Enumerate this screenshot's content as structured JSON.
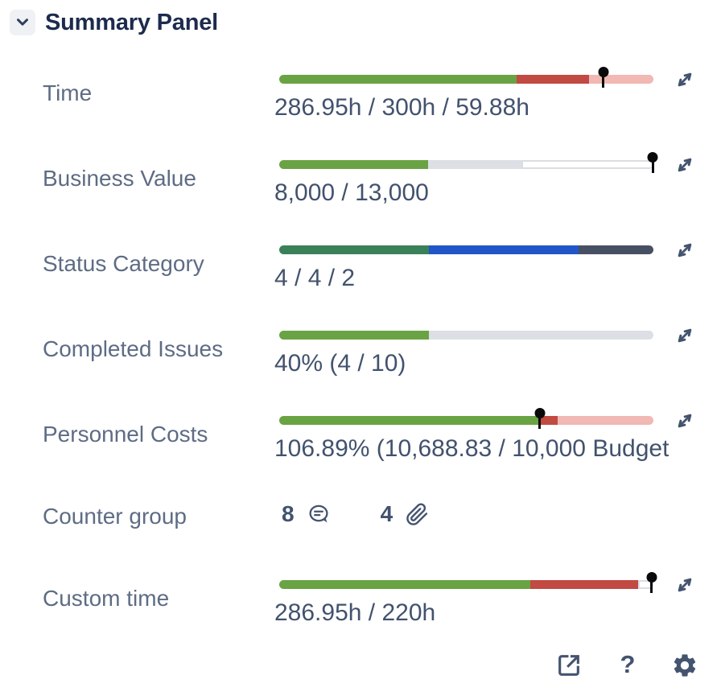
{
  "panel": {
    "title": "Summary Panel"
  },
  "colors": {
    "green": "#6aa343",
    "red": "#c14a42",
    "pink": "#f1b8b4",
    "gray": "#dcdfe4",
    "white": "#ffffff",
    "sea_green": "#3a8159",
    "blue": "#2056c7",
    "dark_slate": "#475063",
    "pin_black": "#0a0a0a",
    "icon_slate": "#44546f",
    "label_text": "#5e6c84",
    "value_text": "#42526e",
    "title_text": "#1c2b4d"
  },
  "rows": [
    {
      "label": "Time",
      "value": "286.95h / 300h / 59.88h",
      "bar": {
        "segments": [
          {
            "color": "#6aa343",
            "to": 63.4
          },
          {
            "color": "#c14a42",
            "to": 82.8
          },
          {
            "color": "#f1b8b4",
            "to": 100
          }
        ],
        "pin": 86.6
      }
    },
    {
      "label": "Business Value",
      "value": "8,000 / 13,000",
      "bar": {
        "segments": [
          {
            "color": "#6aa343",
            "to": 39.7
          },
          {
            "color": "#dcdfe4",
            "to": 64.7
          },
          {
            "color": "#ffffff",
            "to": 100,
            "bordered": true
          }
        ],
        "pin": 99.8
      }
    },
    {
      "label": "Status Category",
      "value": "4 / 4 / 2",
      "bar": {
        "segments": [
          {
            "color": "#3a8159",
            "to": 40
          },
          {
            "color": "#2056c7",
            "to": 80
          },
          {
            "color": "#475063",
            "to": 100
          }
        ]
      }
    },
    {
      "label": "Completed Issues",
      "value": "40% (4 / 10)",
      "bar": {
        "segments": [
          {
            "color": "#6aa343",
            "to": 40
          },
          {
            "color": "#dcdfe4",
            "to": 100
          }
        ]
      }
    },
    {
      "label": "Personnel Costs",
      "value": "106.89% (10,688.83 / 10,000 Budget",
      "bar": {
        "segments": [
          {
            "color": "#6aa343",
            "to": 69.5
          },
          {
            "color": "#c14a42",
            "to": 74.5
          },
          {
            "color": "#f1b8b4",
            "to": 100
          }
        ],
        "pin": 69.6
      }
    },
    {
      "label": "Counter group",
      "counters": [
        {
          "value": "8",
          "icon": "comment-icon"
        },
        {
          "value": "4",
          "icon": "paperclip-icon"
        }
      ]
    },
    {
      "label": "Custom time",
      "value": "286.95h / 220h",
      "bar": {
        "segments": [
          {
            "color": "#6aa343",
            "to": 67.0
          },
          {
            "color": "#c14a42",
            "to": 95.9
          },
          {
            "color": "#ffffff",
            "to": 100,
            "bordered": true
          }
        ],
        "pin": 99.5
      }
    }
  ],
  "footer": {
    "help_label": "?"
  }
}
